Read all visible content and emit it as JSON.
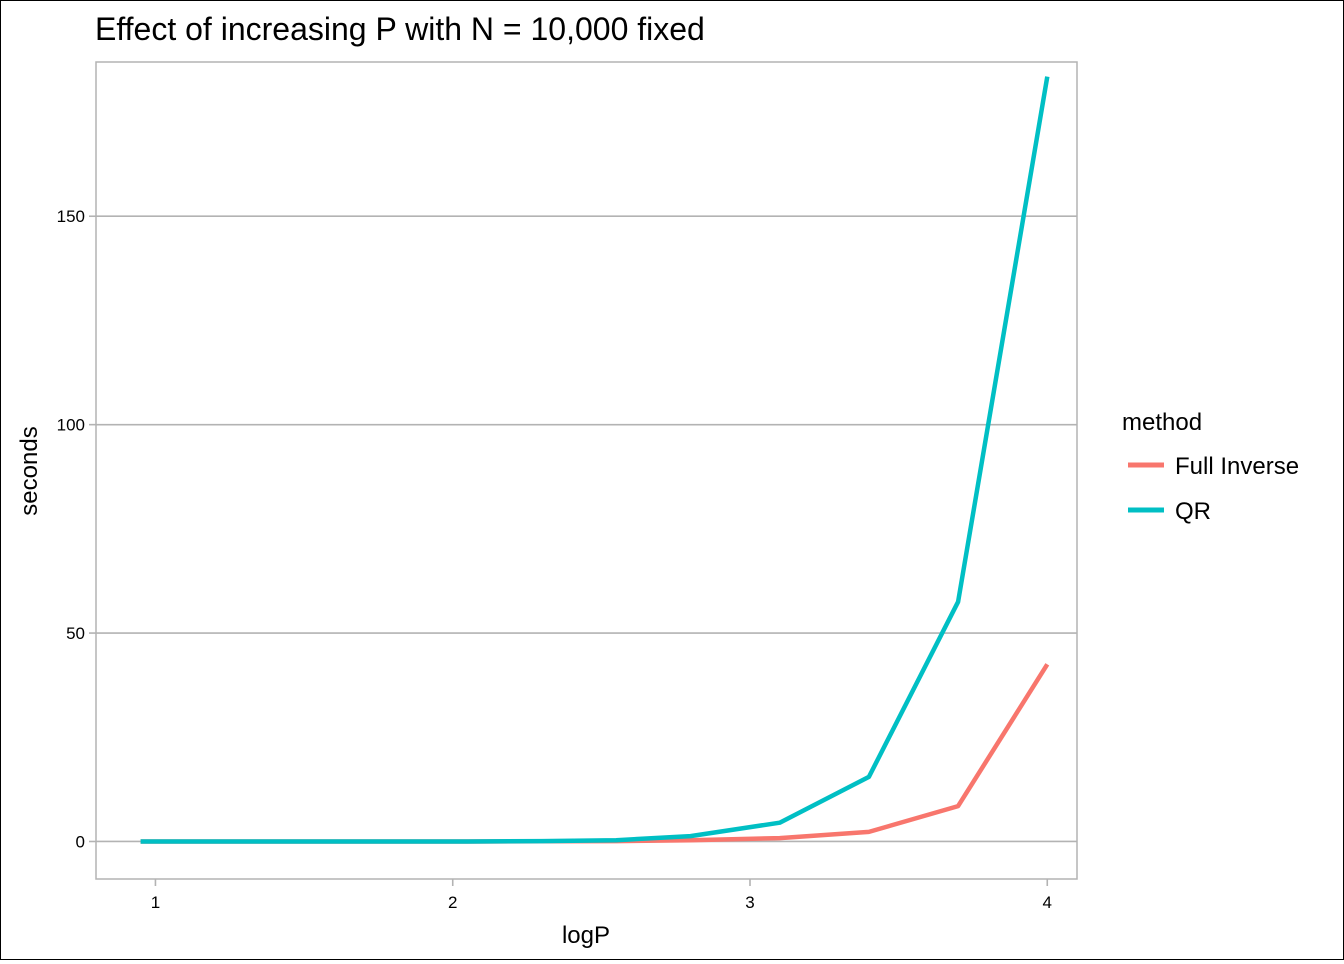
{
  "chart_data": {
    "type": "line",
    "title": "Effect of increasing P with N = 10,000 fixed",
    "xlabel": "logP",
    "ylabel": "seconds",
    "xlim": [
      0.8,
      4.1
    ],
    "ylim": [
      -9,
      187
    ],
    "xticks": [
      1,
      2,
      3,
      4
    ],
    "xtick_labels": [
      "1",
      "2",
      "3",
      "4"
    ],
    "yticks": [
      0,
      50,
      100,
      150
    ],
    "ytick_labels": [
      "0",
      "50",
      "100",
      "150"
    ],
    "grid": "horizontal major gridlines",
    "legend": {
      "title": "method",
      "placement": "right",
      "entries": [
        "Full Inverse",
        "QR"
      ]
    },
    "series": [
      {
        "name": "Full Inverse",
        "color": "#F8766D",
        "x": [
          0.95,
          1.25,
          1.55,
          1.85,
          2.05,
          2.3,
          2.55,
          2.8,
          3.1,
          3.4,
          3.7,
          4.0
        ],
        "values": [
          0,
          0,
          0,
          0,
          0,
          0.05,
          0.1,
          0.3,
          0.8,
          2.3,
          8.5,
          42.5
        ]
      },
      {
        "name": "QR",
        "color": "#00BFC4",
        "x": [
          0.95,
          1.25,
          1.55,
          1.85,
          2.05,
          2.3,
          2.55,
          2.8,
          3.1,
          3.4,
          3.7,
          4.0
        ],
        "values": [
          0,
          0,
          0,
          0,
          0,
          0.1,
          0.3,
          1.3,
          4.5,
          15.5,
          57.5,
          183.5
        ]
      }
    ]
  }
}
